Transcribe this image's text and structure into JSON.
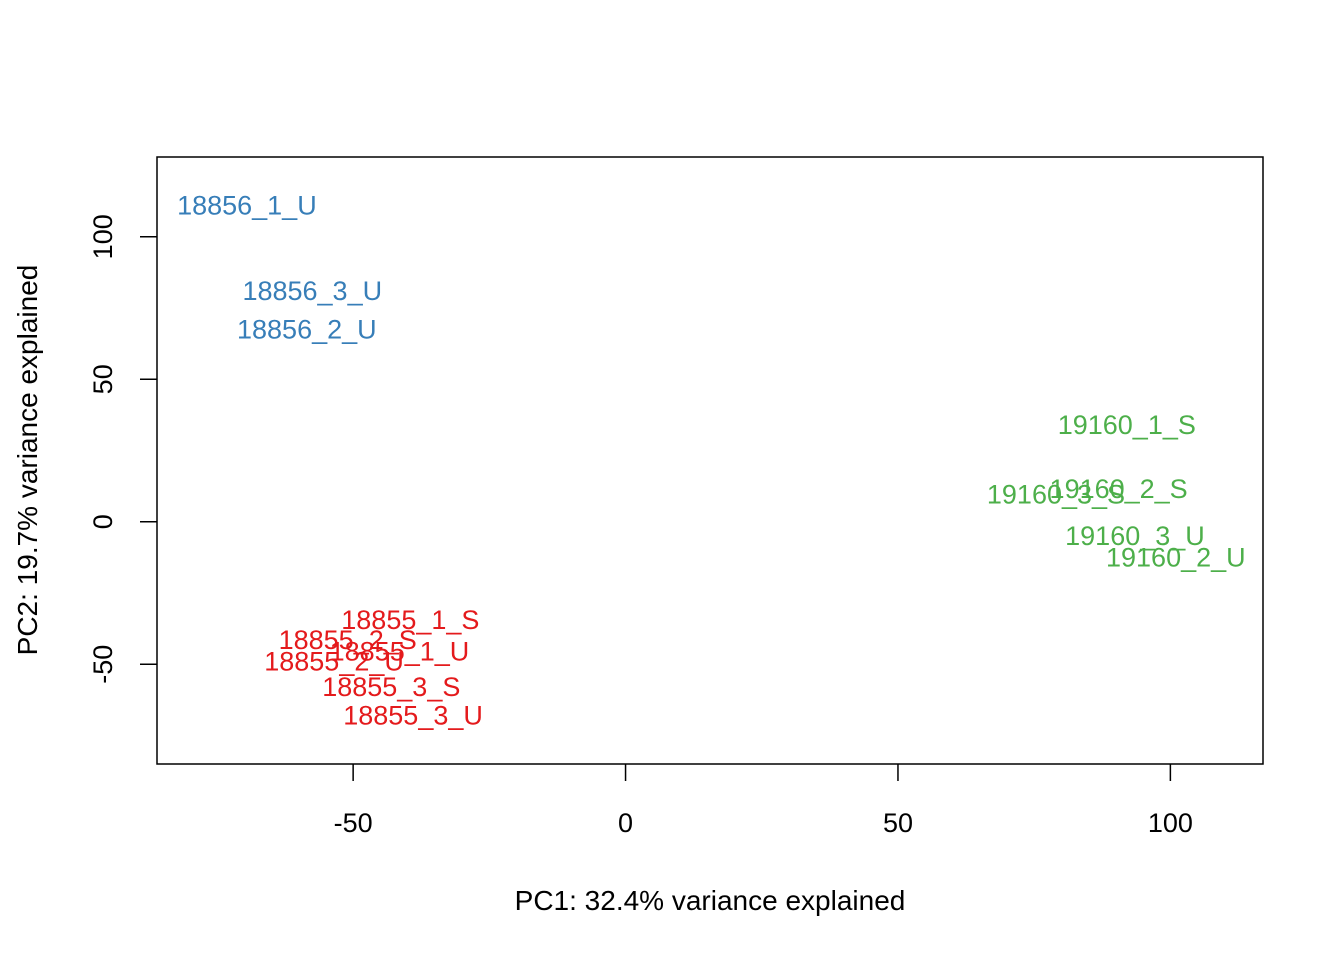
{
  "chart_data": {
    "type": "scatter",
    "title": "",
    "xlabel": "PC1: 32.4% variance explained",
    "ylabel": "PC2: 19.7% variance explained",
    "xlim": [
      -86,
      117
    ],
    "ylim": [
      -85,
      128
    ],
    "x_ticks": [
      -50,
      0,
      50,
      100
    ],
    "y_ticks": [
      -50,
      0,
      50,
      100
    ],
    "grid": false,
    "legend": "none",
    "marker": "text-labels",
    "series": [
      {
        "color": "#377eb8",
        "points": [
          {
            "label": "18856_1_U",
            "x": -69.5,
            "y": 111
          },
          {
            "label": "18856_3_U",
            "x": -57.5,
            "y": 81
          },
          {
            "label": "18856_2_U",
            "x": -58.5,
            "y": 67.5
          }
        ]
      },
      {
        "color": "#e41a1c",
        "points": [
          {
            "label": "18855_1_S",
            "x": -39.5,
            "y": -34.5
          },
          {
            "label": "18855_2_S",
            "x": -51,
            "y": -41.5
          },
          {
            "label": "18855_1_U",
            "x": -41.5,
            "y": -45.5
          },
          {
            "label": "18855_2_U",
            "x": -53.5,
            "y": -49
          },
          {
            "label": "18855_3_S",
            "x": -43,
            "y": -58
          },
          {
            "label": "18855_3_U",
            "x": -39,
            "y": -68
          }
        ]
      },
      {
        "color": "#4daf4a",
        "points": [
          {
            "label": "19160_1_S",
            "x": 92,
            "y": 34
          },
          {
            "label": "19160_2_S",
            "x": 90.5,
            "y": 11.5
          },
          {
            "label": "19160_3_S",
            "x": 79,
            "y": 9.5
          },
          {
            "label": "19160_3_U",
            "x": 93.5,
            "y": -5
          },
          {
            "label": "19160_2_U",
            "x": 101,
            "y": -12.5
          }
        ]
      }
    ]
  }
}
